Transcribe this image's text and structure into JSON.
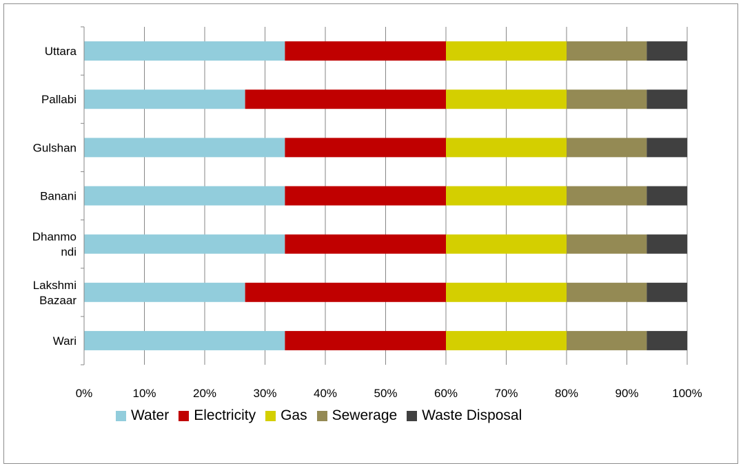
{
  "chart_data": {
    "type": "bar",
    "orientation": "horizontal",
    "stacked": "percent",
    "categories": [
      "Uttara",
      "Pallabi",
      "Gulshan",
      "Banani",
      "Dhanmo ndi",
      "Lakshmi Bazaar",
      "Wari"
    ],
    "category_lines": [
      [
        "Uttara"
      ],
      [
        "Pallabi"
      ],
      [
        "Gulshan"
      ],
      [
        "Banani"
      ],
      [
        "Dhanmo",
        "ndi"
      ],
      [
        "Lakshmi",
        "Bazaar"
      ],
      [
        "Wari"
      ]
    ],
    "series": [
      {
        "name": "Water",
        "color": "#92CDDC",
        "values": [
          33.3,
          26.7,
          33.3,
          33.3,
          33.3,
          26.7,
          33.3
        ]
      },
      {
        "name": "Electricity",
        "color": "#C00000",
        "values": [
          26.7,
          33.3,
          26.7,
          26.7,
          26.7,
          33.3,
          26.7
        ]
      },
      {
        "name": "Gas",
        "color": "#D4CF00",
        "values": [
          20.0,
          20.0,
          20.0,
          20.0,
          20.0,
          20.0,
          20.0
        ]
      },
      {
        "name": "Sewerage",
        "color": "#948A54",
        "values": [
          13.3,
          13.3,
          13.3,
          13.3,
          13.3,
          13.3,
          13.3
        ]
      },
      {
        "name": "Waste Disposal",
        "color": "#404040",
        "values": [
          6.7,
          6.7,
          6.7,
          6.7,
          6.7,
          6.7,
          6.7
        ]
      }
    ],
    "x_ticks": [
      "0%",
      "10%",
      "20%",
      "30%",
      "40%",
      "50%",
      "60%",
      "70%",
      "80%",
      "90%",
      "100%"
    ],
    "xlim": [
      0,
      100
    ],
    "grid": true,
    "legend_position": "bottom"
  }
}
